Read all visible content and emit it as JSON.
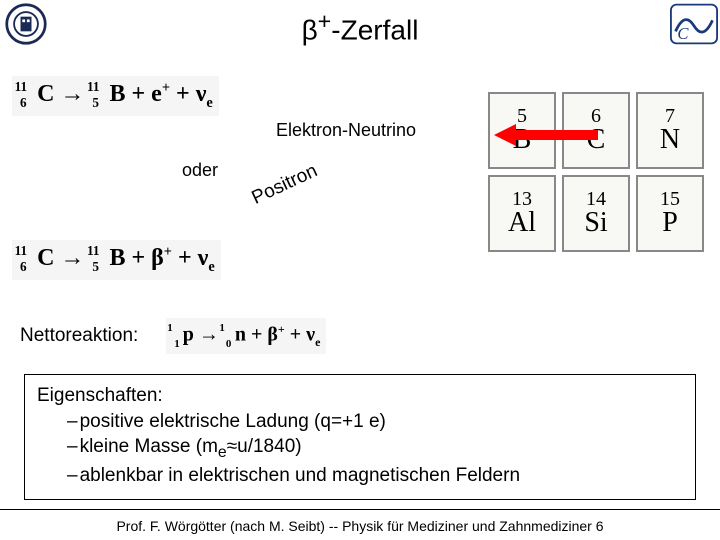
{
  "title_html": "β<sup>+</sup>-Zerfall",
  "labels": {
    "elektron_neutrino": "Elektron-Neutrino",
    "oder": "oder",
    "positron": "Positron",
    "nettoreaktion": "Nettoreaktion:"
  },
  "equations": {
    "eq1_html": "<span class='presub'>6</span><span class='presup'>11</span>C → <span class='presub'>5</span><span class='presup'>11</span>B + e<span class='sup'>+</span> + ν<span class='sub'>e</span>",
    "eq2_html": "<span class='presub'>6</span><span class='presup'>11</span>C → <span class='presub'>5</span><span class='presup'>11</span>B + β<span class='sup'>+</span> + ν<span class='sub'>e</span>",
    "netto_html": "<span class='presub'>1</span><span class='presup'>1</span>p → <span class='presub'>0</span><span class='presup'>1</span>n + β<span class='sup'>+</span> + ν<span class='sub'>e</span>"
  },
  "periodic": {
    "rows": [
      [
        {
          "num": "5",
          "sym": "B"
        },
        {
          "num": "6",
          "sym": "C"
        },
        {
          "num": "7",
          "sym": "N"
        }
      ],
      [
        {
          "num": "13",
          "sym": "Al"
        },
        {
          "num": "14",
          "sym": "Si"
        },
        {
          "num": "15",
          "sym": "P"
        }
      ]
    ],
    "cell_border_color": "#888888",
    "cell_bg": "#f8f8f4",
    "arrow_color": "#ff0000"
  },
  "properties": {
    "heading": "Eigenschaften:",
    "items_html": [
      "positive elektrische Ladung (q=+1 e)",
      "kleine Masse (m<sub>e</sub>≈u/1840)",
      "ablenkbar in elektrischen und magnetischen Feldern"
    ]
  },
  "footer": "Prof. F. Wörgötter (nach M. Seibt) -- Physik für Mediziner und Zahnmediziner 6"
}
